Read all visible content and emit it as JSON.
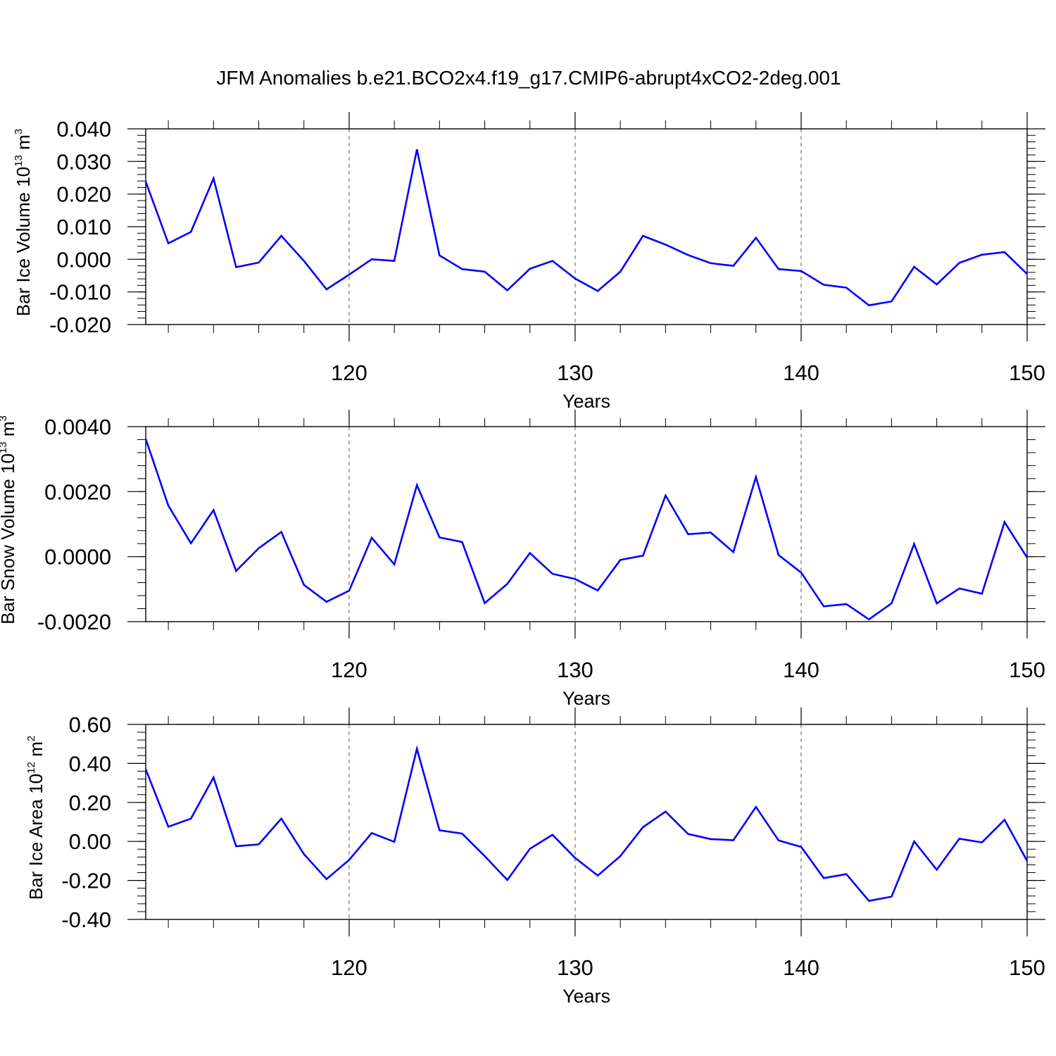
{
  "title": "JFM Anomalies b.e21.BCO2x4.f19_g17.CMIP6-abrupt4xCO2-2deg.001",
  "colors": {
    "line": "#0000ff",
    "axis": "#000000",
    "grid": "#555555"
  },
  "chart_data": [
    {
      "type": "line",
      "xlabel": "Years",
      "ylabel": {
        "main": "Bar Ice Volume 10",
        "sup": "13",
        "unit": " m",
        "unit_sup": "3"
      },
      "xlim": [
        111,
        150
      ],
      "ylim": [
        -0.02,
        0.04
      ],
      "grid": "vertical dashed at major x ticks",
      "x_ticks": [
        120,
        130,
        140,
        150
      ],
      "x_tick_labels": [
        "120",
        "130",
        "140",
        "150"
      ],
      "y_ticks": [
        0.04,
        0.03,
        0.02,
        0.01,
        0.0,
        -0.01,
        -0.02
      ],
      "y_tick_labels": [
        "0.040",
        "0.030",
        "0.020",
        "0.010",
        "0.000",
        "-0.010",
        "-0.020"
      ],
      "x": [
        111,
        112,
        113,
        114,
        115,
        116,
        117,
        118,
        119,
        120,
        121,
        122,
        123,
        124,
        125,
        126,
        127,
        128,
        129,
        130,
        131,
        132,
        133,
        134,
        135,
        136,
        137,
        138,
        139,
        140,
        141,
        142,
        143,
        144,
        145,
        146,
        147,
        148,
        149,
        150
      ],
      "series": [
        {
          "values": [
            0.0238,
            0.0049,
            0.0084,
            0.0248,
            -0.0024,
            -0.001,
            0.0072,
            -0.0005,
            -0.0092,
            -0.0047,
            0.0,
            -0.0005,
            0.0337,
            0.0012,
            -0.003,
            -0.0038,
            -0.0095,
            -0.0029,
            -0.0005,
            -0.0059,
            -0.0097,
            -0.0038,
            0.0072,
            0.0045,
            0.0013,
            -0.0012,
            -0.002,
            0.0066,
            -0.003,
            -0.0036,
            -0.0078,
            -0.0087,
            -0.0141,
            -0.0129,
            -0.0023,
            -0.0077,
            -0.0011,
            0.0014,
            0.0022,
            -0.0045
          ]
        }
      ]
    },
    {
      "type": "line",
      "xlabel": "Years",
      "ylabel": {
        "main": "Bar Snow Volume 10",
        "sup": "13",
        "unit": " m",
        "unit_sup": "3"
      },
      "xlim": [
        111,
        150
      ],
      "ylim": [
        -0.002,
        0.004
      ],
      "grid": "vertical dashed at major x ticks",
      "x_ticks": [
        120,
        130,
        140,
        150
      ],
      "x_tick_labels": [
        "120",
        "130",
        "140",
        "150"
      ],
      "y_ticks": [
        0.004,
        0.002,
        0.0,
        -0.002
      ],
      "y_tick_labels": [
        "0.0040",
        "0.0020",
        "0.0000",
        "-0.0020"
      ],
      "x": [
        111,
        112,
        113,
        114,
        115,
        116,
        117,
        118,
        119,
        120,
        121,
        122,
        123,
        124,
        125,
        126,
        127,
        128,
        129,
        130,
        131,
        132,
        133,
        134,
        135,
        136,
        137,
        138,
        139,
        140,
        141,
        142,
        143,
        144,
        145,
        146,
        147,
        148,
        149,
        150
      ],
      "series": [
        {
          "values": [
            0.00362,
            0.00157,
            0.00041,
            0.00143,
            -0.00044,
            0.00026,
            0.00076,
            -0.00087,
            -0.00139,
            -0.00105,
            0.00058,
            -0.00024,
            0.0022,
            0.00059,
            0.00045,
            -0.00143,
            -0.00084,
            0.00011,
            -0.00053,
            -0.00069,
            -0.00104,
            -0.0001,
            3e-05,
            0.00188,
            0.00069,
            0.00074,
            0.00014,
            0.00245,
            5e-05,
            -0.00049,
            -0.00153,
            -0.00146,
            -0.00193,
            -0.00144,
            0.00039,
            -0.00144,
            -0.00098,
            -0.00114,
            0.00106,
            -3e-05
          ]
        }
      ]
    },
    {
      "type": "line",
      "xlabel": "Years",
      "ylabel": {
        "main": "Bar Ice Area 10",
        "sup": "12",
        "unit": " m",
        "unit_sup": "2"
      },
      "xlim": [
        111,
        150
      ],
      "ylim": [
        -0.4,
        0.6
      ],
      "grid": "vertical dashed at major x ticks",
      "x_ticks": [
        120,
        130,
        140,
        150
      ],
      "x_tick_labels": [
        "120",
        "130",
        "140",
        "150"
      ],
      "y_ticks": [
        0.6,
        0.4,
        0.2,
        0.0,
        -0.2,
        -0.4
      ],
      "y_tick_labels": [
        "0.60",
        "0.40",
        "0.20",
        "0.00",
        "-0.20",
        "-0.40"
      ],
      "x": [
        111,
        112,
        113,
        114,
        115,
        116,
        117,
        118,
        119,
        120,
        121,
        122,
        123,
        124,
        125,
        126,
        127,
        128,
        129,
        130,
        131,
        132,
        133,
        134,
        135,
        136,
        137,
        138,
        139,
        140,
        141,
        142,
        143,
        144,
        145,
        146,
        147,
        148,
        149,
        150
      ],
      "series": [
        {
          "values": [
            0.37,
            0.075,
            0.117,
            0.328,
            -0.025,
            -0.015,
            0.117,
            -0.065,
            -0.193,
            -0.095,
            0.043,
            -0.002,
            0.475,
            0.057,
            0.04,
            -0.075,
            -0.198,
            -0.038,
            0.034,
            -0.085,
            -0.175,
            -0.075,
            0.073,
            0.153,
            0.038,
            0.012,
            0.006,
            0.177,
            0.005,
            -0.028,
            -0.188,
            -0.168,
            -0.305,
            -0.283,
            0.0,
            -0.145,
            0.014,
            -0.005,
            0.111,
            -0.1
          ]
        }
      ]
    }
  ]
}
